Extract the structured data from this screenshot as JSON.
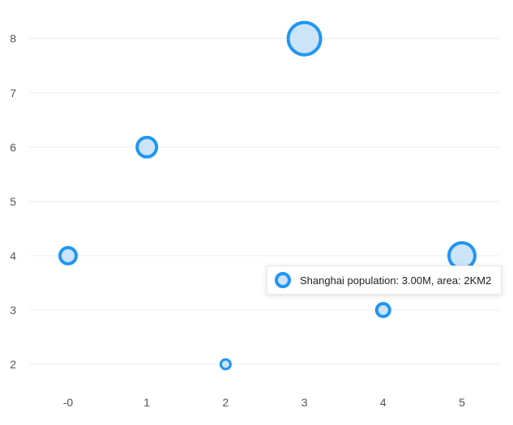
{
  "chart_data": {
    "type": "scatter",
    "title": "",
    "xlabel": "",
    "ylabel": "",
    "x_ticks": [
      "-0",
      "1",
      "2",
      "3",
      "4",
      "5"
    ],
    "y_ticks": [
      "2",
      "3",
      "4",
      "5",
      "6",
      "7",
      "8"
    ],
    "xlim": [
      -0.5,
      5.5
    ],
    "ylim": [
      1.6,
      8.5
    ],
    "grid": "horizontal",
    "marker_color": "#2196f3",
    "marker_fill": "#cce4f7",
    "points": [
      {
        "x": 0,
        "y": 4,
        "size": 3
      },
      {
        "x": 1,
        "y": 6,
        "size": 4
      },
      {
        "x": 2,
        "y": 2,
        "size": 1
      },
      {
        "x": 3,
        "y": 8,
        "size": 8
      },
      {
        "x": 4,
        "y": 3,
        "size": 2
      },
      {
        "x": 5,
        "y": 4,
        "size": 6
      }
    ]
  },
  "tooltip": {
    "text": "Shanghai population: 3.00M, area: 2KM2"
  }
}
